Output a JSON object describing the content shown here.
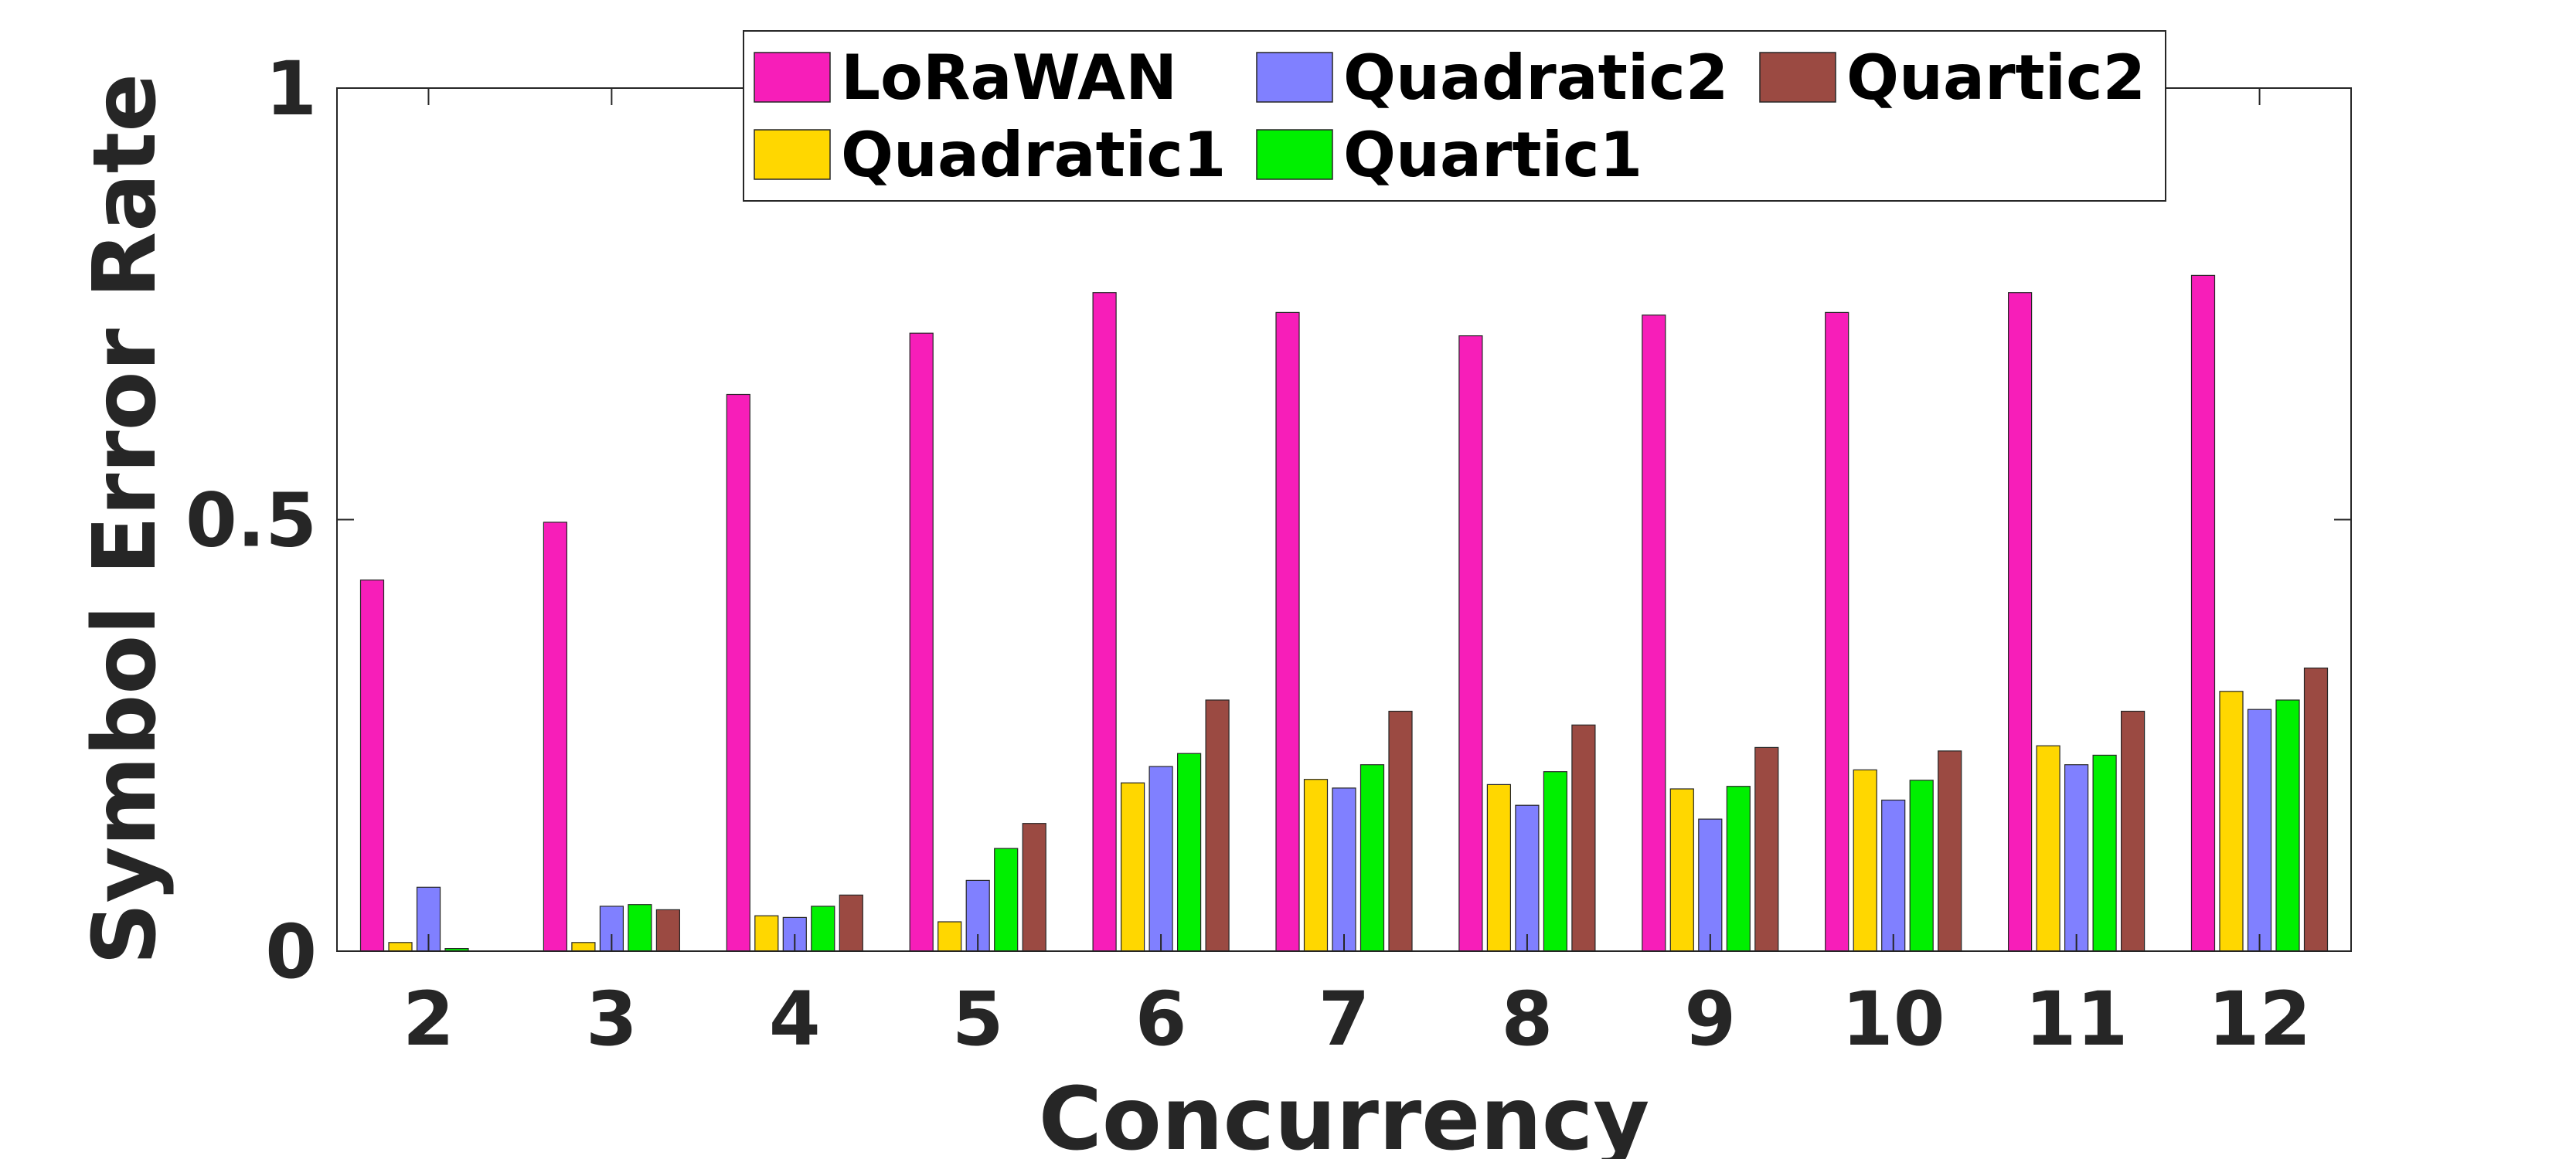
{
  "chart_data": {
    "type": "bar",
    "xlabel": "Concurrency",
    "ylabel": "Symbol Error Rate",
    "ylim": [
      0,
      1
    ],
    "yticks": [
      0,
      0.5,
      1
    ],
    "ytick_labels": [
      "0",
      "0.5",
      "1"
    ],
    "grid": false,
    "legend_position": "top-center",
    "categories": [
      "2",
      "3",
      "4",
      "5",
      "6",
      "7",
      "8",
      "9",
      "10",
      "11",
      "12"
    ],
    "series": [
      {
        "name": "LoRaWAN",
        "color": "#F71EB9",
        "values": [
          0.43,
          0.497,
          0.645,
          0.716,
          0.763,
          0.74,
          0.713,
          0.737,
          0.74,
          0.763,
          0.783
        ]
      },
      {
        "name": "Quadratic1",
        "color": "#FFD700",
        "values": [
          0.01,
          0.01,
          0.041,
          0.034,
          0.195,
          0.199,
          0.193,
          0.188,
          0.21,
          0.238,
          0.301
        ]
      },
      {
        "name": "Quadratic2",
        "color": "#8080FF",
        "values": [
          0.074,
          0.052,
          0.039,
          0.082,
          0.214,
          0.189,
          0.169,
          0.153,
          0.175,
          0.216,
          0.28
        ]
      },
      {
        "name": "Quartic1",
        "color": "#00F000",
        "values": [
          0.003,
          0.054,
          0.052,
          0.119,
          0.229,
          0.216,
          0.208,
          0.191,
          0.198,
          0.227,
          0.291
        ]
      },
      {
        "name": "Quartic2",
        "color": "#9B4A42",
        "values": [
          0.0,
          0.048,
          0.065,
          0.148,
          0.291,
          0.278,
          0.262,
          0.236,
          0.232,
          0.278,
          0.328
        ]
      }
    ]
  }
}
